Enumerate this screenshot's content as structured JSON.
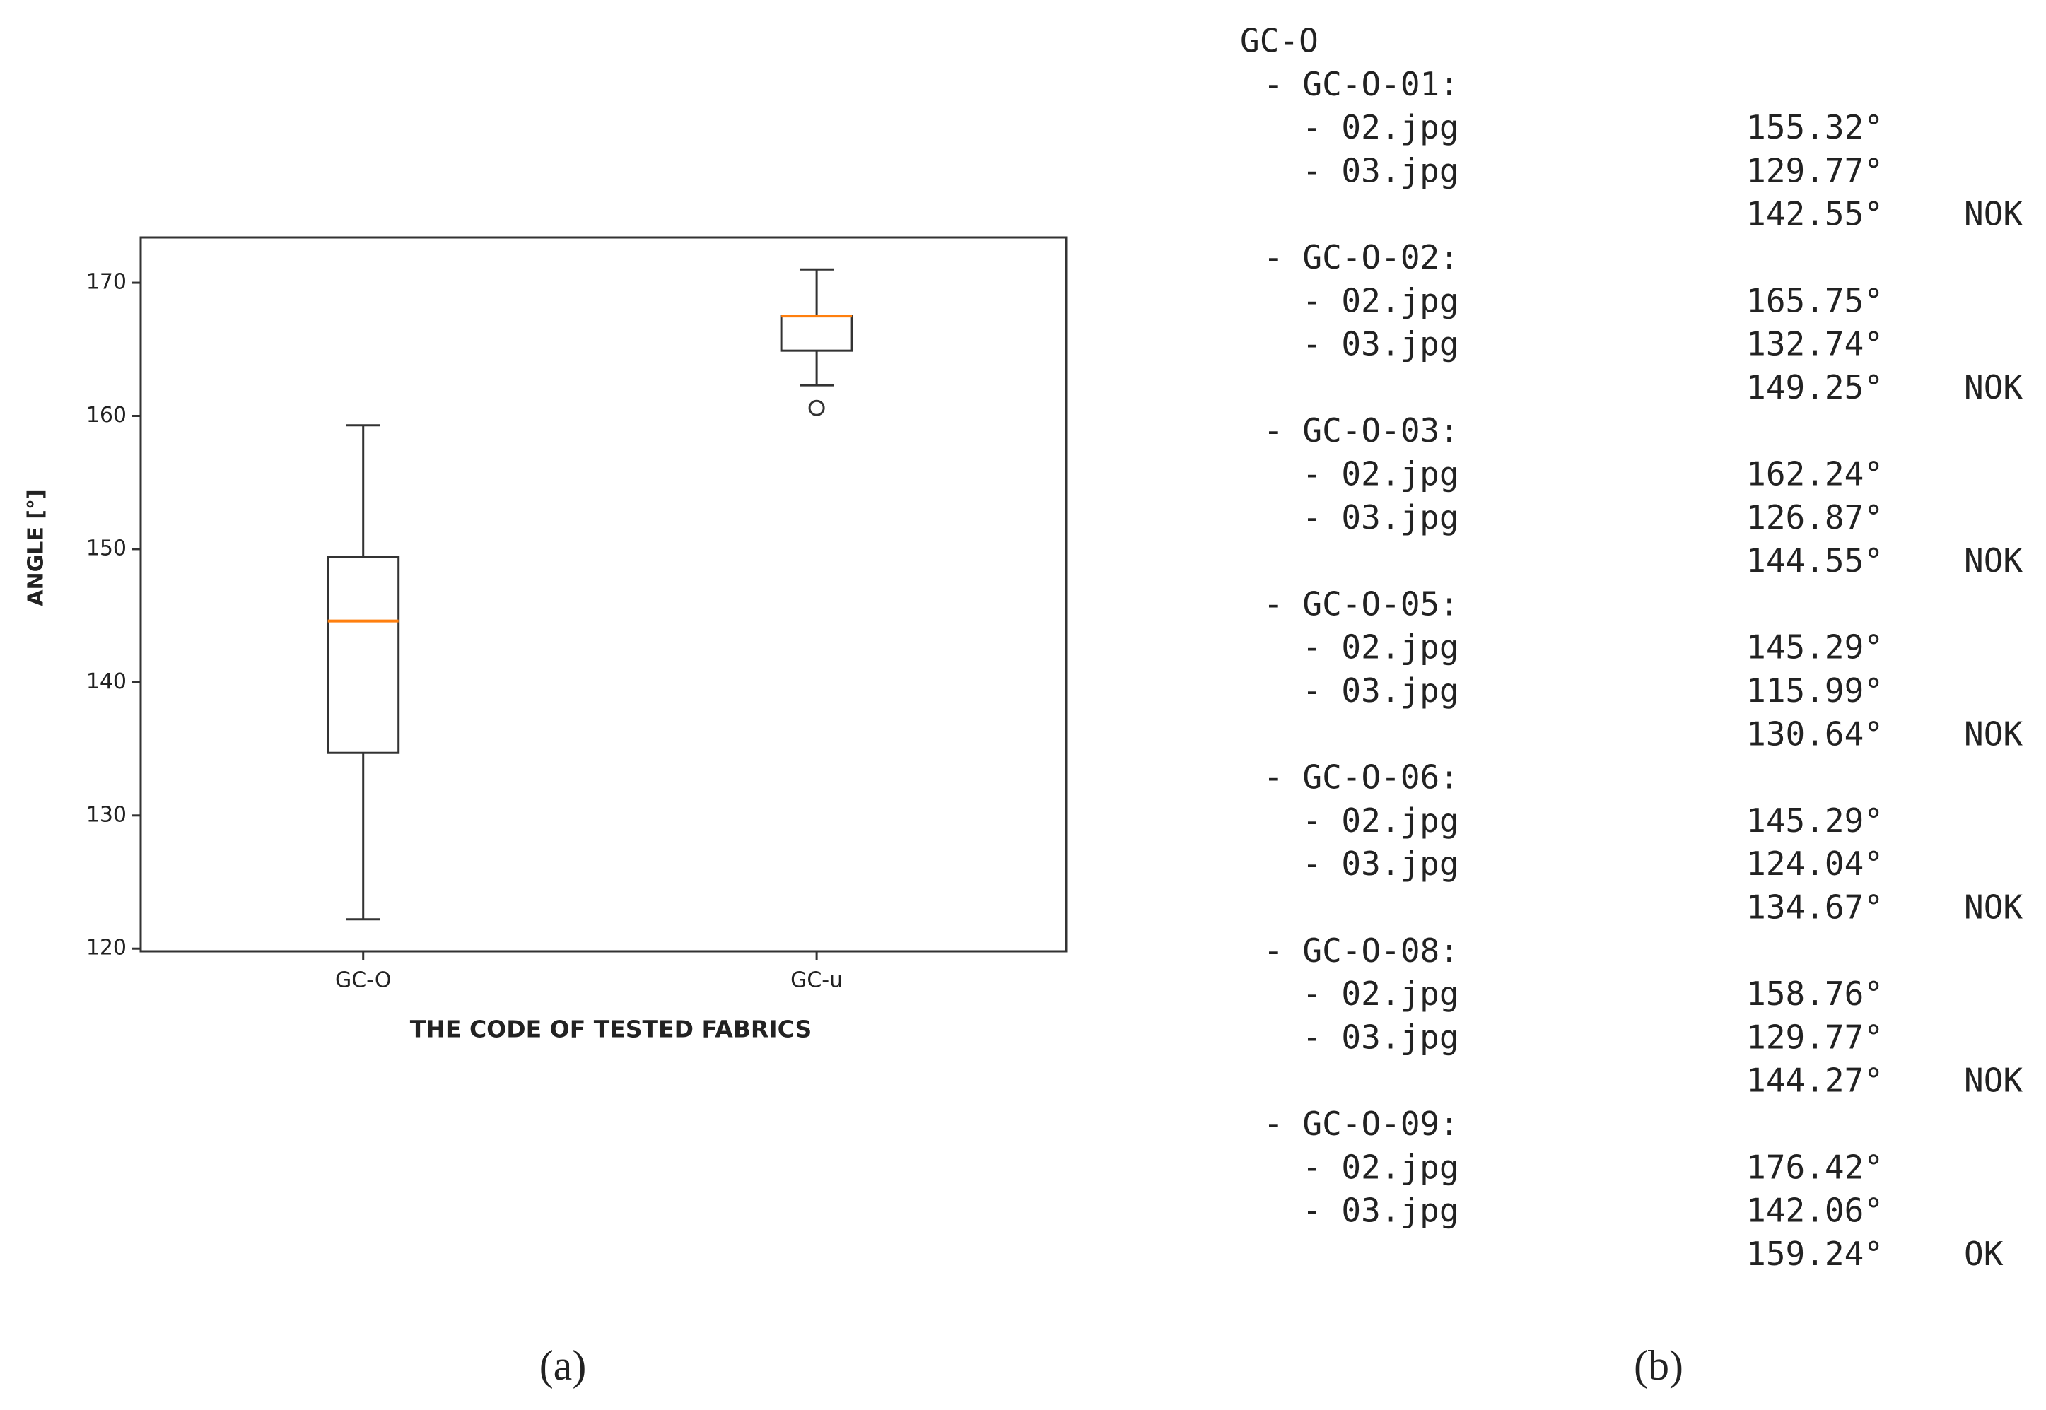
{
  "chart_data": {
    "type": "box",
    "xlabel": "THE CODE OF TESTED FABRICS",
    "ylabel": "ANGLE [°]",
    "categories": [
      "GC-O",
      "GC-u"
    ],
    "boxes": [
      {
        "whislo": 122.2,
        "q1": 134.7,
        "median": 144.6,
        "q3": 149.4,
        "whishi": 159.3,
        "fliers": []
      },
      {
        "whislo": 162.3,
        "q1": 164.9,
        "median": 167.5,
        "q3": 167.5,
        "whishi": 171.0,
        "fliers": [
          160.6
        ]
      }
    ],
    "box_color": "#333333",
    "median_color": "#ff7f0e",
    "ylim": [
      119.8,
      173.4
    ],
    "yticks": [
      120,
      130,
      140,
      150,
      160,
      170
    ]
  },
  "panel_labels": [
    "(a)",
    "(b)"
  ],
  "listing": {
    "title": "GC-O",
    "groups": [
      {
        "name": "- GC-O-01:",
        "files": [
          {
            "name": "- 02.jpg",
            "value": "155.32°"
          },
          {
            "name": "- 03.jpg",
            "value": "129.77°"
          }
        ],
        "mean": "142.55°",
        "status": "NOK"
      },
      {
        "name": "- GC-O-02:",
        "files": [
          {
            "name": "- 02.jpg",
            "value": "165.75°"
          },
          {
            "name": "- 03.jpg",
            "value": "132.74°"
          }
        ],
        "mean": "149.25°",
        "status": "NOK"
      },
      {
        "name": "- GC-O-03:",
        "files": [
          {
            "name": "- 02.jpg",
            "value": "162.24°"
          },
          {
            "name": "- 03.jpg",
            "value": "126.87°"
          }
        ],
        "mean": "144.55°",
        "status": "NOK"
      },
      {
        "name": "- GC-O-05:",
        "files": [
          {
            "name": "- 02.jpg",
            "value": "145.29°"
          },
          {
            "name": "- 03.jpg",
            "value": "115.99°"
          }
        ],
        "mean": "130.64°",
        "status": "NOK"
      },
      {
        "name": "- GC-O-06:",
        "files": [
          {
            "name": "- 02.jpg",
            "value": "145.29°"
          },
          {
            "name": "- 03.jpg",
            "value": "124.04°"
          }
        ],
        "mean": "134.67°",
        "status": "NOK"
      },
      {
        "name": "- GC-O-08:",
        "files": [
          {
            "name": "- 02.jpg",
            "value": "158.76°"
          },
          {
            "name": "- 03.jpg",
            "value": "129.77°"
          }
        ],
        "mean": "144.27°",
        "status": "NOK"
      },
      {
        "name": "- GC-O-09:",
        "files": [
          {
            "name": "- 02.jpg",
            "value": "176.42°"
          },
          {
            "name": "- 03.jpg",
            "value": "142.06°"
          }
        ],
        "mean": "159.24°",
        "status": "OK"
      }
    ]
  }
}
